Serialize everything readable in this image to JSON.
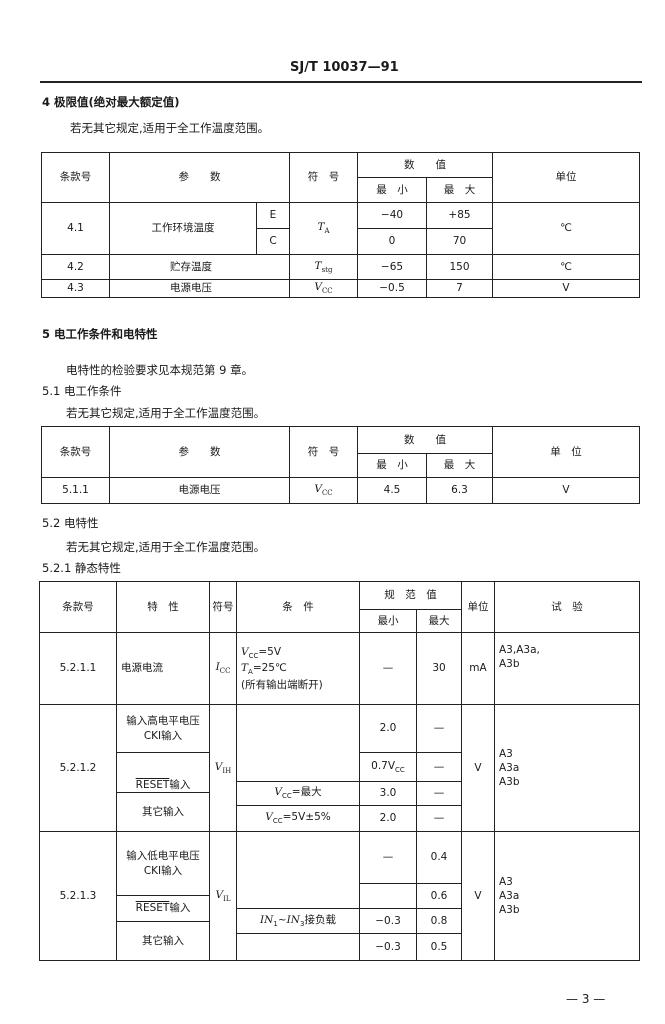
{
  "header": {
    "doc_number": "SJ/T 10037—91"
  },
  "s4": {
    "heading": "4  极限值(绝对最大额定值)",
    "note": "若无其它规定,适用于全工作温度范围。",
    "table": {
      "h_clause": "条款号",
      "h_param": "参　　数",
      "h_symbol": "符　号",
      "h_value": "数　　值",
      "h_min": "最　小",
      "h_max": "最　大",
      "h_unit": "单位",
      "rows": [
        {
          "clause": "4.1",
          "param": "工作环境温度",
          "sub": [
            "E",
            "C"
          ],
          "sym": "T",
          "symsub": "A",
          "min": [
            "−40",
            "0"
          ],
          "max": [
            "+85",
            "70"
          ],
          "unit": "℃"
        },
        {
          "clause": "4.2",
          "param": "贮存温度",
          "sym": "T",
          "symsub": "stg",
          "min": "−65",
          "max": "150",
          "unit": "℃"
        },
        {
          "clause": "4.3",
          "param": "电源电压",
          "sym": "V",
          "symsub": "CC",
          "min": "−0.5",
          "max": "7",
          "unit": "V"
        }
      ]
    }
  },
  "s5": {
    "heading": "5  电工作条件和电特性",
    "note": "电特性的检验要求见本规范第 9 章。"
  },
  "s51": {
    "heading": "5.1  电工作条件",
    "note": "若无其它规定,适用于全工作温度范围。",
    "table": {
      "h_clause": "条款号",
      "h_param": "参　　数",
      "h_symbol": "符　号",
      "h_value": "数　　值",
      "h_min": "最　小",
      "h_max": "最　大",
      "h_unit": "单　位",
      "row": {
        "clause": "5.1.1",
        "param": "电源电压",
        "sym": "V",
        "symsub": "CC",
        "min": "4.5",
        "max": "6.3",
        "unit": "V"
      }
    }
  },
  "s52": {
    "heading": "5.2  电特性",
    "note": "若无其它规定,适用于全工作温度范围。"
  },
  "s521": {
    "heading": "5.2.1  静态特性",
    "table": {
      "h_clause": "条款号",
      "h_char": "特　性",
      "h_symbol": "符号",
      "h_cond": "条　件",
      "h_spec": "规　范　值",
      "h_min": "最小",
      "h_max": "最大",
      "h_unit": "单位",
      "h_test": "试　验",
      "r1": {
        "clause": "5.2.1.1",
        "char": "电源电流",
        "sym": "I",
        "symsub": "CC",
        "cond1": "V",
        "cond1sub": "CC",
        "cond1rest": "=5V",
        "cond2": "T",
        "cond2sub": "A",
        "cond2rest": "=25℃",
        "cond3": "(所有输出端断开)",
        "min": "—",
        "max": "30",
        "unit": "mA",
        "test1": "A3,A3a,",
        "test2": "A3b"
      },
      "r2": {
        "clause": "5.2.1.2",
        "char1": "输入高电平电压",
        "char2": "CKI输入",
        "char3": "RESET",
        "char3rest": "输入",
        "char4": "其它输入",
        "sym": "V",
        "symsub": "IH",
        "condA": "=最大",
        "condB": "=5V±5%",
        "condsub": "CC",
        "condbase": "V",
        "min": [
          "2.0",
          "0.7V",
          "3.0",
          "2.0"
        ],
        "min2sub": "CC",
        "max": [
          "—",
          "—",
          "—",
          "—"
        ],
        "unit": "V",
        "test": [
          "A3",
          "A3a",
          "A3b"
        ]
      },
      "r3": {
        "clause": "5.2.1.3",
        "char1": "输入低电平电压",
        "char2": "CKI输入",
        "char3": "RESET",
        "char3rest": "输入",
        "char4": "其它输入",
        "sym": "V",
        "symsub": "IL",
        "cond": "IN",
        "condsub1": "1",
        "condmid": "~IN",
        "condsub2": "3",
        "condrest": "接负载",
        "min": [
          "—",
          "",
          "−0.3",
          "−0.3"
        ],
        "max": [
          "0.4",
          "0.6",
          "0.8",
          "0.5"
        ],
        "unit": "V",
        "test": [
          "A3",
          "A3a",
          "A3b"
        ]
      }
    }
  },
  "footer": {
    "page": "— 3 —"
  }
}
